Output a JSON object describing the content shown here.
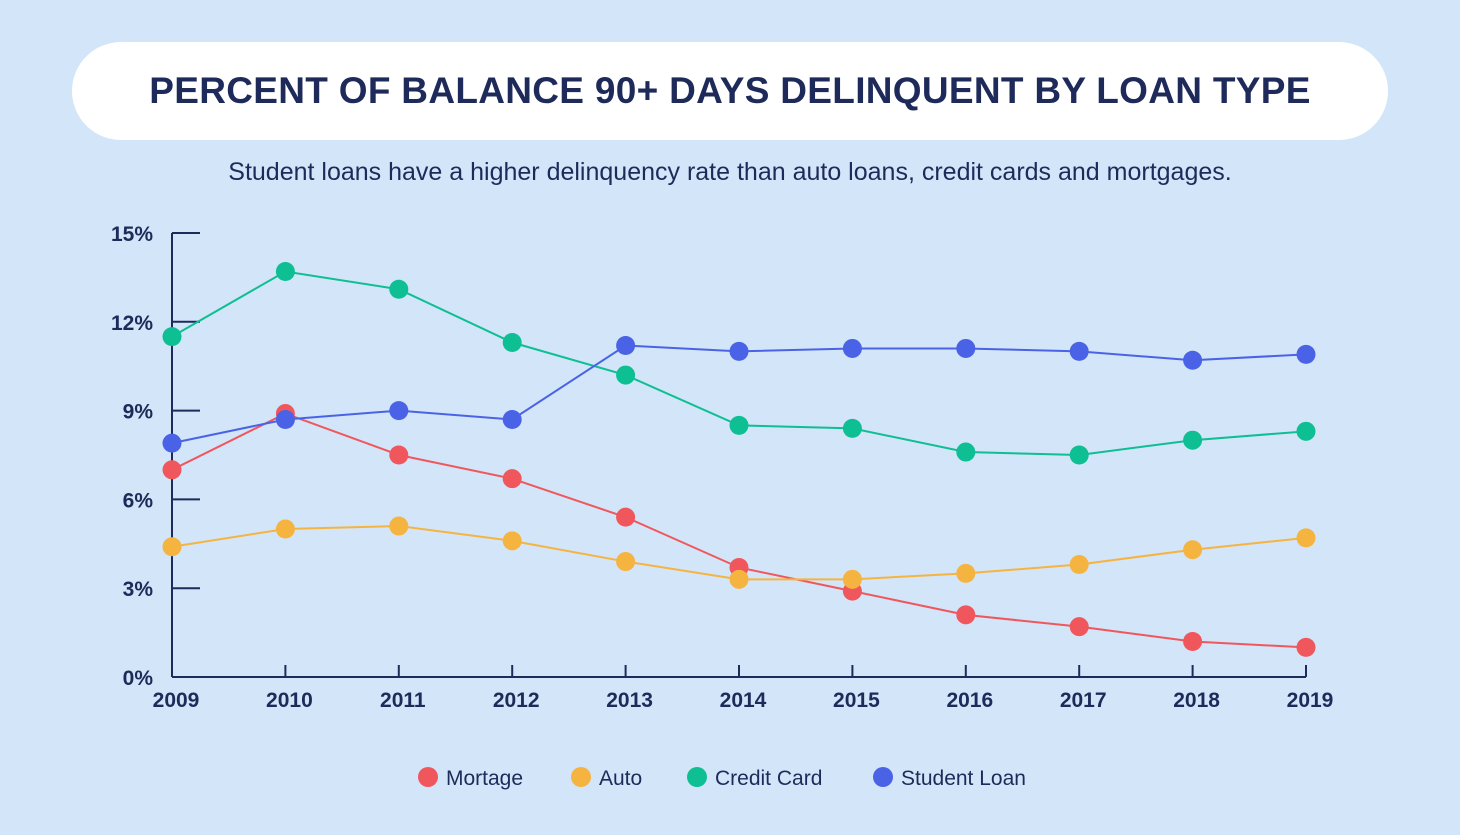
{
  "header": {
    "title": "PERCENT OF BALANCE 90+ DAYS DELINQUENT BY LOAN TYPE",
    "subtitle": "Student loans have a higher delinquency rate than auto loans, credit cards and mortgages."
  },
  "chart_data": {
    "type": "line",
    "x": [
      "2009",
      "2010",
      "2011",
      "2012",
      "2013",
      "2014",
      "2015",
      "2016",
      "2017",
      "2018",
      "2019"
    ],
    "y_ticks": [
      0,
      3,
      6,
      9,
      12,
      15
    ],
    "y_tick_labels": [
      "0%",
      "3%",
      "6%",
      "9%",
      "12%",
      "15%"
    ],
    "ylim": [
      0,
      15
    ],
    "grid": false,
    "legend_position": "bottom",
    "series": [
      {
        "name": "Mortage",
        "color": "#f0575d",
        "values": [
          7.0,
          8.9,
          7.5,
          6.7,
          5.4,
          3.7,
          2.9,
          2.1,
          1.7,
          1.2,
          1.0
        ]
      },
      {
        "name": "Auto",
        "color": "#f5b440",
        "values": [
          4.4,
          5.0,
          5.1,
          4.6,
          3.9,
          3.3,
          3.3,
          3.5,
          3.8,
          4.3,
          4.7
        ]
      },
      {
        "name": "Credit Card",
        "color": "#0dbf93",
        "values": [
          11.5,
          13.7,
          13.1,
          11.3,
          10.2,
          8.5,
          8.4,
          7.6,
          7.5,
          8.0,
          8.3
        ]
      },
      {
        "name": "Student Loan",
        "color": "#4a63e6",
        "values": [
          7.9,
          8.7,
          9.0,
          8.7,
          11.2,
          11.0,
          11.1,
          11.1,
          11.0,
          10.7,
          10.9
        ]
      }
    ]
  }
}
